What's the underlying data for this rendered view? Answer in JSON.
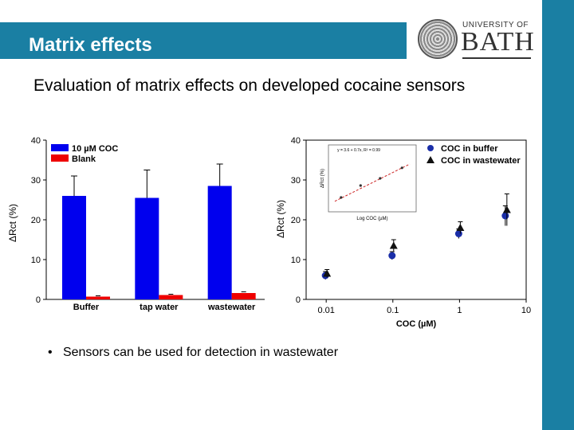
{
  "slide": {
    "title": "Matrix effects",
    "subtitle": "Evaluation of matrix effects on developed cocaine sensors",
    "bullet": "Sensors can be used for detection in wastewater",
    "logo_text": {
      "line1": "UNIVERSITY OF",
      "line2": "BATH"
    }
  },
  "colors": {
    "accent": "#1a7fa3",
    "bar_main": "#0000ee",
    "bar_blank": "#ee0000",
    "trend": "#cc2222"
  },
  "chart_data": [
    {
      "type": "bar",
      "categories": [
        "Buffer",
        "tap water",
        "wastewater"
      ],
      "series": [
        {
          "name": "10 µM COC",
          "values": [
            26,
            25.5,
            28.5
          ],
          "errors": [
            5,
            7,
            5.5
          ]
        },
        {
          "name": "Blank",
          "values": [
            0.7,
            1.1,
            1.6
          ],
          "errors": [
            0.2,
            0.2,
            0.3
          ]
        }
      ],
      "ylabel": "ΔRct (%)",
      "ylim": [
        0,
        40
      ],
      "yticks": [
        "0",
        "10",
        "20",
        "30",
        "40"
      ],
      "legend": "top-left"
    },
    {
      "type": "scatter",
      "xscale": "log",
      "xlabel": "COC (µM)",
      "ylabel": "ΔRct (%)",
      "xlim": [
        0.005,
        10
      ],
      "ylim": [
        0,
        40
      ],
      "xticks": [
        "0.01",
        "0.1",
        "1",
        "10"
      ],
      "yticks": [
        "0",
        "10",
        "20",
        "30",
        "40"
      ],
      "series": [
        {
          "name": "COC in buffer",
          "marker": "circle",
          "x": [
            0.01,
            0.1,
            1,
            5
          ],
          "y": [
            6,
            11,
            16.5,
            21
          ],
          "errors": [
            1,
            1,
            1.2,
            2.5
          ]
        },
        {
          "name": "COC in wastewater",
          "marker": "triangle",
          "x": [
            0.01,
            0.1,
            1,
            5
          ],
          "y": [
            6.5,
            13.5,
            18,
            22.5
          ],
          "errors": [
            1,
            1.5,
            1.5,
            4
          ]
        }
      ],
      "legend": "top-right",
      "inset": {
        "type": "line",
        "xlabel": "Log COC (µM)",
        "ylabel": "ΔRct (%)",
        "equation": "y = 3.6 + 0.7x, R² = 0.99"
      }
    }
  ]
}
